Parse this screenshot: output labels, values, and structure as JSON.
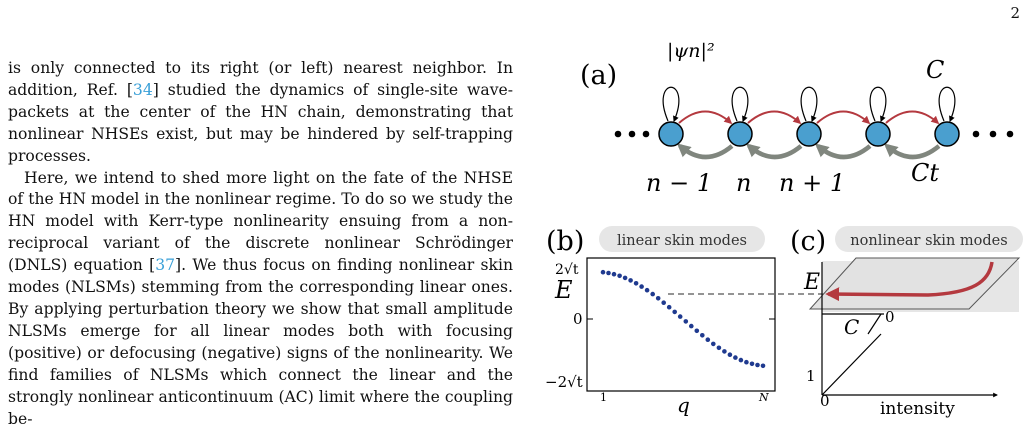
{
  "page_number": "2",
  "body": {
    "p1": {
      "t1": "is only connected to its right (or left) nearest neighbor. In addition, Ref. [",
      "ref": "34",
      "t2": "] studied the dynamics of single-site wave-packets at the center of the HN chain, demonstrating that nonlinear NHSEs exist, but may be hindered by self-trapping processes."
    },
    "p2": {
      "t1": "Here, we intend to shed more light on the fate of the NHSE of the HN model in the nonlinear regime. To do so we study the HN model with Kerr-type nonlinearity ensuing from a non-reciprocal variant of the discrete nonlinear Schrödinger (DNLS) equation [",
      "ref": "37",
      "t2": "]. We thus focus on finding nonlinear skin modes (NLSMs) stemming from the corresponding linear ones. By applying perturbation theory we show that small amplitude NLSMs emerge for all linear modes both with focusing (positive) or defocusing (negative) signs of the nonlinearity. We find families of NLSMs which connect the linear and the strongly nonlinear anticontinuum (AC) limit where the coupling be-"
    }
  },
  "figure": {
    "panel_a": {
      "tag": "(a)",
      "psi_label": "|ψn|²",
      "site_labels": [
        "n − 1",
        "n",
        "n + 1"
      ],
      "right_hop_label": "C",
      "left_hop_label": "Ct",
      "colors": {
        "site_fill": "#4a9fcf",
        "right_hop": "#b4393f",
        "left_hop": "#80867e"
      }
    },
    "panel_b": {
      "tag": "(b)",
      "chip": "linear skin modes",
      "ylabel": "E",
      "yticks": [
        "2√t",
        "0",
        "−2√t"
      ],
      "xticks": [
        "1",
        "N"
      ],
      "xlabel": "q"
    },
    "panel_c": {
      "tag": "(c)",
      "chip": "nonlinear skin modes",
      "e_label": "E",
      "c_label": "C",
      "zero_c": "0",
      "one": "1",
      "origin": "0",
      "intensity": "intensity"
    }
  },
  "chart_data": {
    "type": "scatter",
    "title": "linear skin modes",
    "xlabel": "q",
    "ylabel": "E",
    "x": "q = 1 … N",
    "y_function": "E_q = 2√t·cos(πq/(N+1))",
    "points": 30,
    "ylim": [
      "−2√t",
      "2√t"
    ],
    "color": "#1f3a8f"
  }
}
